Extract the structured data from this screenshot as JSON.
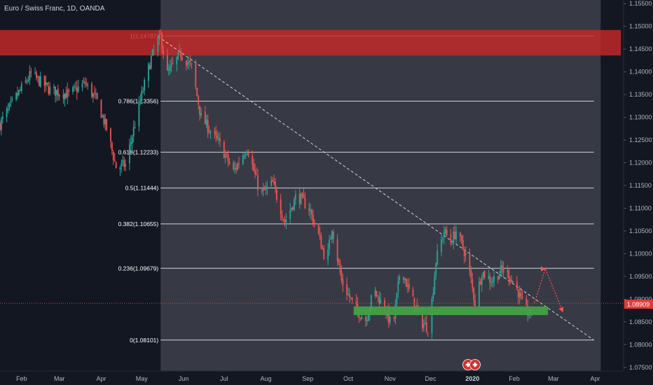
{
  "header": {
    "title": "Euro / Swiss Franc, 1D, OANDA"
  },
  "colors": {
    "background": "#131722",
    "shade": "#555860",
    "up": "#26a69a",
    "down": "#ef5350",
    "resistance": "#c62828",
    "support": "#43a047",
    "fib_line": "#d1d4dc",
    "trend_line": "#d1d4dc",
    "current_price": "#e53935",
    "projection": "#ff5252"
  },
  "chart_data": {
    "type": "candlestick",
    "symbol": "Euro / Swiss Franc",
    "interval": "1D",
    "source": "OANDA",
    "x_ticks": [
      "Feb",
      "Mar",
      "Apr",
      "May",
      "Jun",
      "Jul",
      "Aug",
      "Sep",
      "Oct",
      "Nov",
      "Dec",
      "2020",
      "Feb",
      "Mar",
      "Apr"
    ],
    "y_ticks": [
      "1.15500",
      "1.15000",
      "1.14500",
      "1.14000",
      "1.13500",
      "1.13000",
      "1.12500",
      "1.12000",
      "1.11500",
      "1.11000",
      "1.10500",
      "1.10000",
      "1.09500",
      "1.09000",
      "1.08500",
      "1.08000",
      "1.07500"
    ],
    "ylim": [
      1.0742,
      1.1558
    ],
    "xlim": [
      "2019-01-16",
      "2020-04-22"
    ],
    "current_price": {
      "label": "1.08909",
      "value": 1.08909
    },
    "close_path": [
      [
        "2019-01-16",
        1.1285
      ],
      [
        "2019-01-28",
        1.1345
      ],
      [
        "2019-02-08",
        1.1395
      ],
      [
        "2019-02-22",
        1.136
      ],
      [
        "2019-03-08",
        1.135
      ],
      [
        "2019-03-20",
        1.1375
      ],
      [
        "2019-03-29",
        1.1335
      ],
      [
        "2019-04-05",
        1.1275
      ],
      [
        "2019-04-12",
        1.119
      ],
      [
        "2019-04-19",
        1.1195
      ],
      [
        "2019-04-29",
        1.1325
      ],
      [
        "2019-05-08",
        1.143
      ],
      [
        "2019-05-15",
        1.1478
      ],
      [
        "2019-05-20",
        1.1395
      ],
      [
        "2019-05-30",
        1.144
      ],
      [
        "2019-06-07",
        1.141
      ],
      [
        "2019-06-14",
        1.13
      ],
      [
        "2019-06-28",
        1.124
      ],
      [
        "2019-07-08",
        1.118
      ],
      [
        "2019-07-18",
        1.1235
      ],
      [
        "2019-07-28",
        1.113
      ],
      [
        "2019-08-06",
        1.1155
      ],
      [
        "2019-08-15",
        1.107
      ],
      [
        "2019-08-24",
        1.113
      ],
      [
        "2019-09-02",
        1.11
      ],
      [
        "2019-09-08",
        1.105
      ],
      [
        "2019-09-15",
        1.098
      ],
      [
        "2019-09-19",
        1.106
      ],
      [
        "2019-09-26",
        1.094
      ],
      [
        "2019-10-06",
        1.088
      ],
      [
        "2019-10-14",
        1.0855
      ],
      [
        "2019-10-20",
        1.092
      ],
      [
        "2019-10-28",
        1.088
      ],
      [
        "2019-11-03",
        1.0835
      ],
      [
        "2019-11-09",
        1.0975
      ],
      [
        "2019-11-14",
        1.0925
      ],
      [
        "2019-11-24",
        1.085
      ],
      [
        "2019-11-30",
        1.0835
      ],
      [
        "2019-12-05",
        1.0985
      ],
      [
        "2019-12-11",
        1.105
      ],
      [
        "2019-12-16",
        1.1025
      ],
      [
        "2019-12-20",
        1.105
      ],
      [
        "2019-12-28",
        1.099
      ],
      [
        "2020-01-03",
        1.089
      ],
      [
        "2020-01-08",
        1.096
      ],
      [
        "2020-01-15",
        1.094
      ],
      [
        "2020-01-23",
        1.0965
      ],
      [
        "2020-01-28",
        1.0955
      ],
      [
        "2020-02-04",
        1.0915
      ],
      [
        "2020-02-08",
        1.088
      ],
      [
        "2020-02-13",
        1.0865
      ],
      [
        "2020-02-16",
        1.0891
      ]
    ],
    "shaded_region": {
      "start": "2019-05-15",
      "end": "2020-04-05"
    },
    "resistance_zone": {
      "start": "2019-01-16",
      "end": "2020-04-20",
      "low": 1.1436,
      "high": 1.1492
    },
    "support_zone": {
      "start": "2019-10-05",
      "end": "2020-02-26",
      "low": 1.0865,
      "high": 1.0884
    },
    "trend_line": {
      "from": [
        "2019-05-13",
        1.1478
      ],
      "to": [
        "2020-03-31",
        1.081
      ]
    },
    "fib_levels": [
      {
        "label": "1(1.14787)",
        "ratio": 1,
        "value": 1.14787
      },
      {
        "label": "0.786(1.13356)",
        "ratio": 0.786,
        "value": 1.13356
      },
      {
        "label": "0.618(1.12233)",
        "ratio": 0.618,
        "value": 1.12233
      },
      {
        "label": "0.5(1.11444)",
        "ratio": 0.5,
        "value": 1.11444
      },
      {
        "label": "0.382(1.10655)",
        "ratio": 0.382,
        "value": 1.10655
      },
      {
        "label": "0.236(1.09679)",
        "ratio": 0.236,
        "value": 1.09679
      },
      {
        "label": "0(1.08101)",
        "ratio": 0,
        "value": 1.08101
      }
    ],
    "fib_range": {
      "start": "2019-05-15",
      "end": "2020-03-31"
    },
    "projection": [
      [
        "2020-02-16",
        1.0892
      ],
      [
        "2020-02-24",
        1.0967
      ],
      [
        "2020-03-08",
        1.0872
      ]
    ],
    "grid": false
  }
}
